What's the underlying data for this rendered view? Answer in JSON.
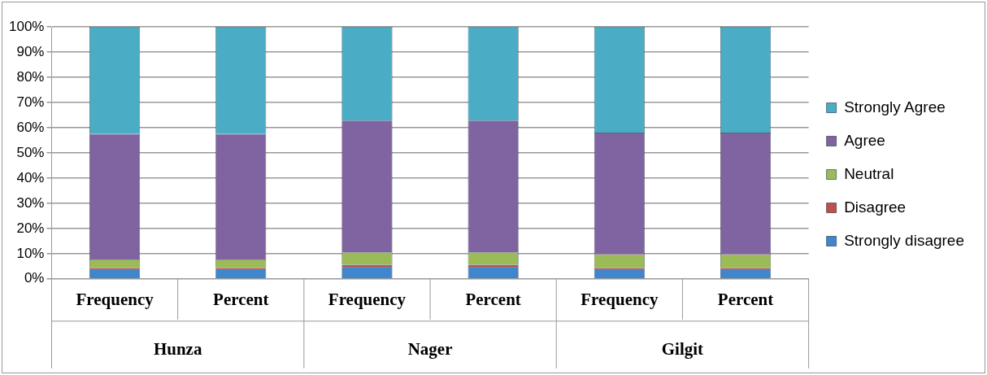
{
  "chart_data": {
    "type": "bar",
    "stacked": true,
    "categories": [
      "Frequency",
      "Percent",
      "Frequency",
      "Percent",
      "Frequency",
      "Percent"
    ],
    "annotations": [
      "Hunza",
      "Nager",
      "Gilgit"
    ],
    "series": [
      {
        "name": "Strongly disagree",
        "color": "#3f86cc",
        "values": [
          3.7,
          3.7,
          4.8,
          4.8,
          3.7,
          3.7
        ]
      },
      {
        "name": "Disagree",
        "color": "#c0504d",
        "values": [
          0.6,
          0.6,
          0.8,
          0.8,
          0.6,
          0.6
        ]
      },
      {
        "name": "Neutral",
        "color": "#9bbb59",
        "values": [
          3.4,
          3.4,
          4.9,
          4.9,
          5.4,
          5.4
        ]
      },
      {
        "name": "Agree",
        "color": "#8064a2",
        "values": [
          49.8,
          49.8,
          52.3,
          52.3,
          48.3,
          48.3
        ]
      },
      {
        "name": "Strongly Agree",
        "color": "#4bacc6",
        "values": [
          42.5,
          42.5,
          37.2,
          37.2,
          42,
          42
        ]
      }
    ],
    "ylim": [
      0,
      100
    ],
    "yticks": [
      {
        "value": 0,
        "label": "0%"
      },
      {
        "value": 10,
        "label": "10%"
      },
      {
        "value": 20,
        "label": "20%"
      },
      {
        "value": 30,
        "label": "30%"
      },
      {
        "value": 40,
        "label": "40%"
      },
      {
        "value": 50,
        "label": "50%"
      },
      {
        "value": 60,
        "label": "60%"
      },
      {
        "value": 70,
        "label": "70%"
      },
      {
        "value": 80,
        "label": "80%"
      },
      {
        "value": 90,
        "label": "90%"
      },
      {
        "value": 100,
        "label": "100%"
      }
    ],
    "grid": "y",
    "legend": "right"
  }
}
